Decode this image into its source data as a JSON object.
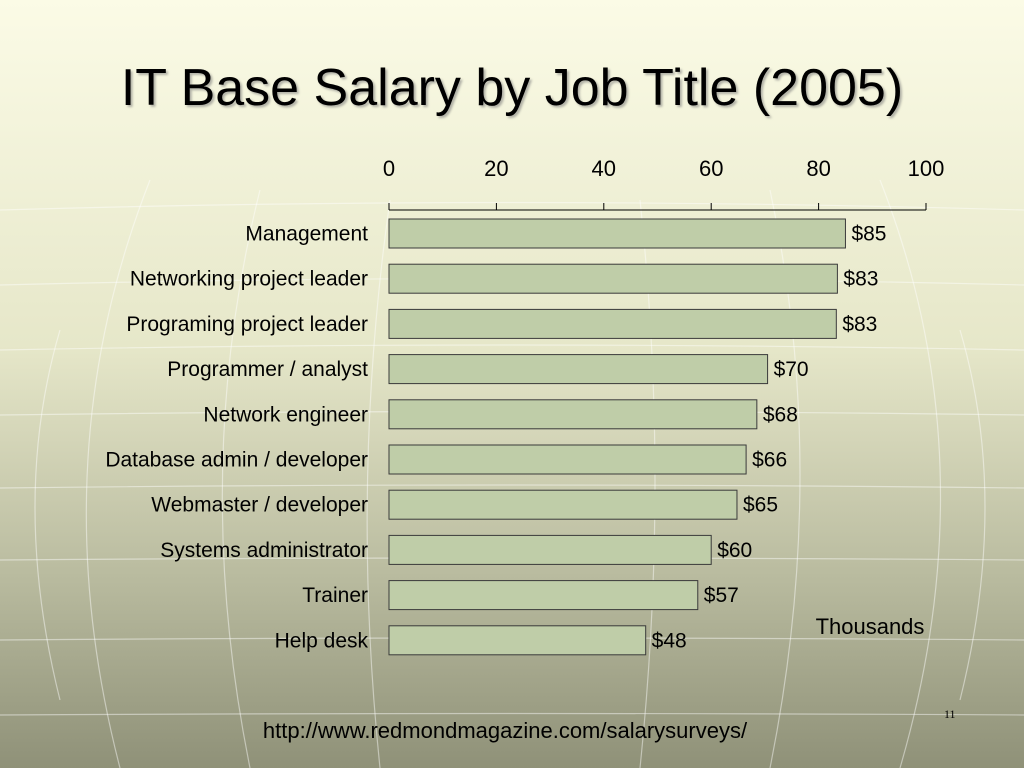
{
  "slide": {
    "title": "IT Base Salary by Job Title (2005)",
    "source_url": "http://www.redmondmagazine.com/salarysurveys/",
    "page_number": "11"
  },
  "colors": {
    "background_top": "#fbfbe6",
    "background_bottom": "#8f9178",
    "bar_fill": "#bfcda8",
    "bar_stroke": "#3a3a3a",
    "text": "#000000"
  },
  "chart_data": {
    "type": "bar",
    "orientation": "horizontal",
    "title": "IT Base Salary by Job Title (2005)",
    "xlabel": "Thousands",
    "ylabel": "",
    "xlim": [
      0,
      100
    ],
    "x_ticks": [
      "0",
      "20",
      "40",
      "60",
      "80",
      "100"
    ],
    "x_tick_values": [
      0,
      20,
      40,
      60,
      80,
      100
    ],
    "axis_position": "top",
    "grid": false,
    "categories": [
      "Management",
      "Networking project leader",
      "Programing project leader",
      "Programmer / analyst",
      "Network engineer",
      "Database admin / developer",
      "Webmaster / developer",
      "Systems administrator",
      "Trainer",
      "Help desk"
    ],
    "values": [
      85,
      83.5,
      83.3,
      70.5,
      68.5,
      66.5,
      64.8,
      60,
      57.5,
      47.8
    ],
    "data_labels": [
      "$85",
      "$83",
      "$83",
      "$70",
      "$68",
      "$66",
      "$65",
      "$60",
      "$57",
      "$48"
    ]
  }
}
